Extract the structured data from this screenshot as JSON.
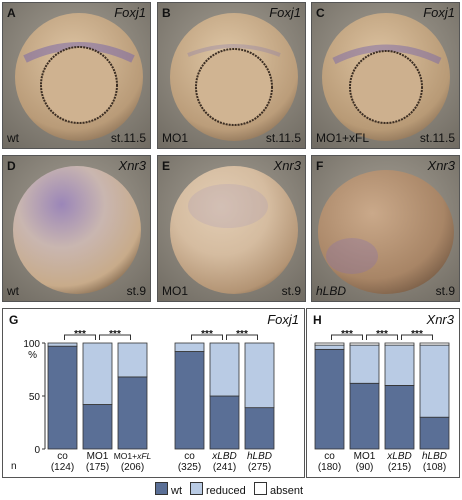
{
  "panels": [
    {
      "label": "A",
      "gene": "Foxj1",
      "condition": "wt",
      "stage": "st.11.5"
    },
    {
      "label": "B",
      "gene": "Foxj1",
      "condition": "MO1",
      "stage": "st.11.5"
    },
    {
      "label": "C",
      "gene": "Foxj1",
      "condition": "MO1+xFL",
      "stage": "st.11.5"
    },
    {
      "label": "D",
      "gene": "Xnr3",
      "condition": "wt",
      "stage": "st.9"
    },
    {
      "label": "E",
      "gene": "Xnr3",
      "condition": "MO1",
      "stage": "st.9"
    },
    {
      "label": "F",
      "gene": "Xnr3",
      "condition": "hLBD",
      "stage": "st.9"
    }
  ],
  "colors": {
    "wt": "#5a6f96",
    "reduced": "#b9cbe4",
    "absent": "#ffffff"
  },
  "legend": {
    "wt": "wt",
    "reduced": "reduced",
    "absent": "absent"
  },
  "chart_data": [
    {
      "type": "bar",
      "panel_label": "G",
      "gene": "Foxj1",
      "y_unit": "%",
      "ylim": [
        0,
        100
      ],
      "yticks": [
        0,
        50,
        100
      ],
      "n_prefix": "n",
      "significance": "***",
      "groups": [
        {
          "categories": [
            "co",
            "MO1",
            "MO1+xFL"
          ],
          "n": [
            "(124)",
            "(175)",
            "(206)"
          ],
          "series": [
            {
              "name": "wt",
              "values": [
                97,
                42,
                68
              ]
            },
            {
              "name": "reduced",
              "values": [
                3,
                58,
                32
              ]
            },
            {
              "name": "absent",
              "values": [
                0,
                0,
                0
              ]
            }
          ],
          "brackets": [
            [
              0,
              1
            ],
            [
              1,
              2
            ]
          ]
        },
        {
          "categories": [
            "co",
            "xLBD",
            "hLBD"
          ],
          "n": [
            "(325)",
            "(241)",
            "(275)"
          ],
          "series": [
            {
              "name": "wt",
              "values": [
                92,
                50,
                39
              ]
            },
            {
              "name": "reduced",
              "values": [
                8,
                50,
                61
              ]
            },
            {
              "name": "absent",
              "values": [
                0,
                0,
                0
              ]
            }
          ],
          "brackets": [
            [
              0,
              1
            ],
            [
              1,
              2
            ]
          ]
        }
      ]
    },
    {
      "type": "bar",
      "panel_label": "H",
      "gene": "Xnr3",
      "ylim": [
        0,
        100
      ],
      "significance": "***",
      "groups": [
        {
          "categories": [
            "co",
            "MO1",
            "xLBD",
            "hLBD"
          ],
          "n": [
            "(180)",
            "(90)",
            "(215)",
            "(108)"
          ],
          "series": [
            {
              "name": "wt",
              "values": [
                94,
                62,
                60,
                30
              ]
            },
            {
              "name": "reduced",
              "values": [
                4,
                36,
                38,
                68
              ]
            },
            {
              "name": "absent",
              "values": [
                2,
                2,
                2,
                2
              ]
            }
          ],
          "brackets": [
            [
              0,
              1
            ],
            [
              1,
              2
            ],
            [
              2,
              3
            ]
          ]
        }
      ]
    }
  ]
}
